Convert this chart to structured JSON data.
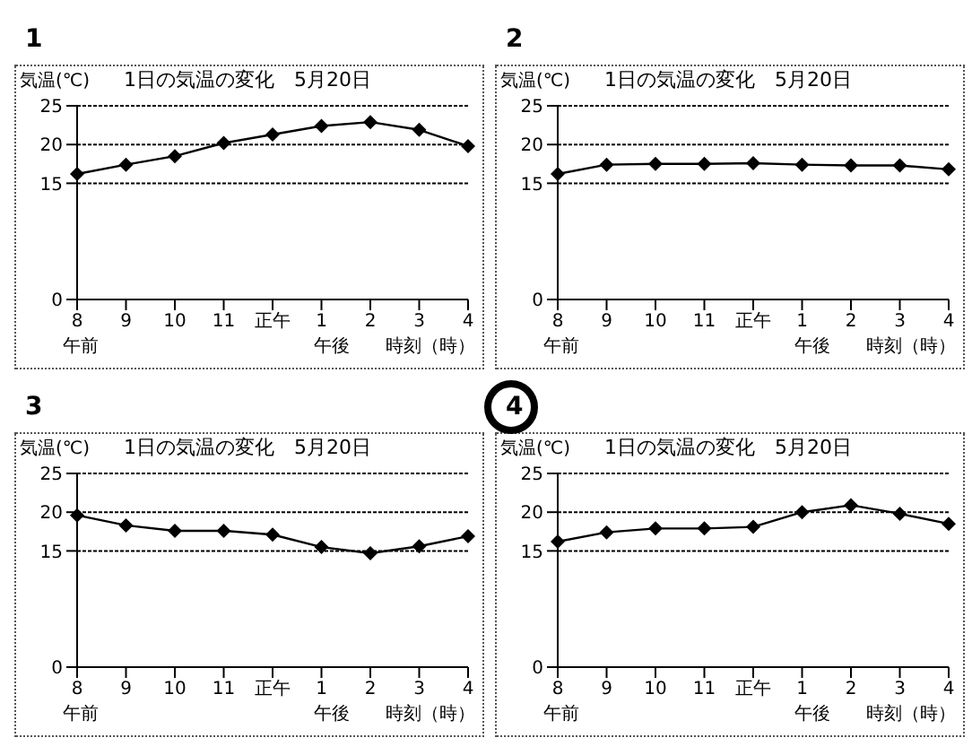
{
  "chart_data": [
    {
      "type": "line",
      "title": "1日の気温の変化　5月20日",
      "ylabel": "気温(℃)",
      "xlabel": "時刻（時）",
      "annotations": [
        "1",
        "午前",
        "午後"
      ],
      "categories": [
        "8",
        "9",
        "10",
        "11",
        "正午",
        "1",
        "2",
        "3",
        "4"
      ],
      "series": [
        {
          "color": "#000000",
          "values": [
            16.2,
            17.4,
            18.5,
            20.2,
            21.3,
            22.4,
            22.9,
            21.9,
            19.8
          ]
        }
      ],
      "ylim": [
        0,
        25
      ],
      "yticks": [
        0,
        15,
        20,
        25
      ],
      "grid": "y",
      "marker": "diamond",
      "line_style": "solid",
      "legend": false
    },
    {
      "type": "line",
      "title": "1日の気温の変化　5月20日",
      "ylabel": "気温(℃)",
      "xlabel": "時刻（時）",
      "annotations": [
        "2",
        "午前",
        "午後"
      ],
      "categories": [
        "8",
        "9",
        "10",
        "11",
        "正午",
        "1",
        "2",
        "3",
        "4"
      ],
      "series": [
        {
          "color": "#000000",
          "values": [
            16.2,
            17.4,
            17.5,
            17.5,
            17.6,
            17.4,
            17.3,
            17.3,
            16.8
          ]
        }
      ],
      "ylim": [
        0,
        25
      ],
      "yticks": [
        0,
        15,
        20,
        25
      ],
      "grid": "y",
      "marker": "diamond",
      "line_style": "solid",
      "legend": false
    },
    {
      "type": "line",
      "title": "1日の気温の変化　5月20日",
      "ylabel": "気温(℃)",
      "xlabel": "時刻（時）",
      "annotations": [
        "3",
        "午前",
        "午後"
      ],
      "categories": [
        "8",
        "9",
        "10",
        "11",
        "正午",
        "1",
        "2",
        "3",
        "4"
      ],
      "series": [
        {
          "color": "#000000",
          "values": [
            19.6,
            18.3,
            17.6,
            17.6,
            17.1,
            15.5,
            14.7,
            15.6,
            16.9
          ]
        }
      ],
      "ylim": [
        0,
        25
      ],
      "yticks": [
        0,
        15,
        20,
        25
      ],
      "grid": "y",
      "marker": "diamond",
      "line_style": "solid",
      "legend": false
    },
    {
      "type": "line",
      "title": "1日の気温の変化　5月20日",
      "ylabel": "気温(℃)",
      "xlabel": "時刻（時）",
      "annotations": [
        "4",
        "午前",
        "午後"
      ],
      "categories": [
        "8",
        "9",
        "10",
        "11",
        "正午",
        "1",
        "2",
        "3",
        "4"
      ],
      "series": [
        {
          "color": "#000000",
          "values": [
            16.2,
            17.4,
            17.9,
            17.9,
            18.1,
            20.0,
            20.9,
            19.8,
            18.5
          ]
        }
      ],
      "ylim": [
        0,
        25
      ],
      "yticks": [
        0,
        15,
        20,
        25
      ],
      "grid": "y",
      "marker": "diamond",
      "line_style": "solid",
      "legend": false
    }
  ]
}
